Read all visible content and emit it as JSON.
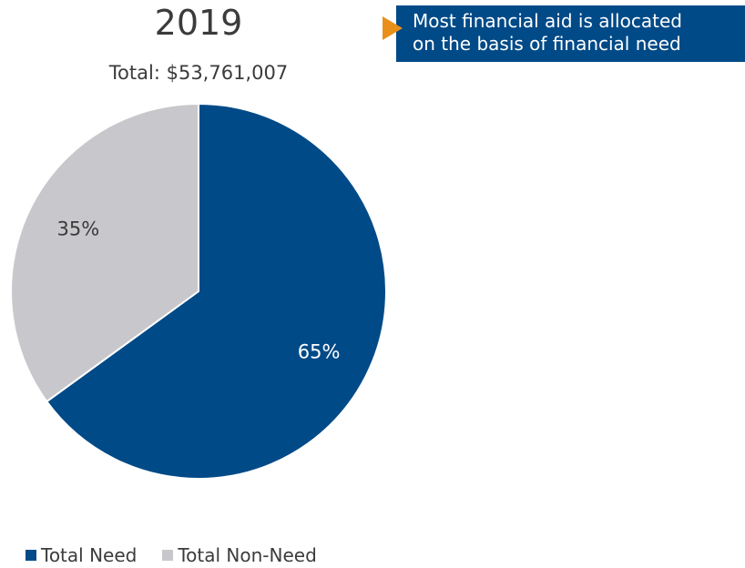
{
  "callout": {
    "lines": [
      "Most financial aid is allocated",
      "on the basis of financial need"
    ],
    "box_color": "#004a87",
    "arrow_color": "#e8901a"
  },
  "chart_data": {
    "type": "pie",
    "title": "2019",
    "subtitle": "Total: $53,761,007",
    "slices": [
      {
        "name": "Total Need",
        "value": 65,
        "label": "65%",
        "color": "#004a87"
      },
      {
        "name": "Total Non-Need",
        "value": 35,
        "label": "35%",
        "color": "#c8c8cc"
      }
    ],
    "start": "top, clockwise",
    "legend_position": "bottom-left"
  }
}
